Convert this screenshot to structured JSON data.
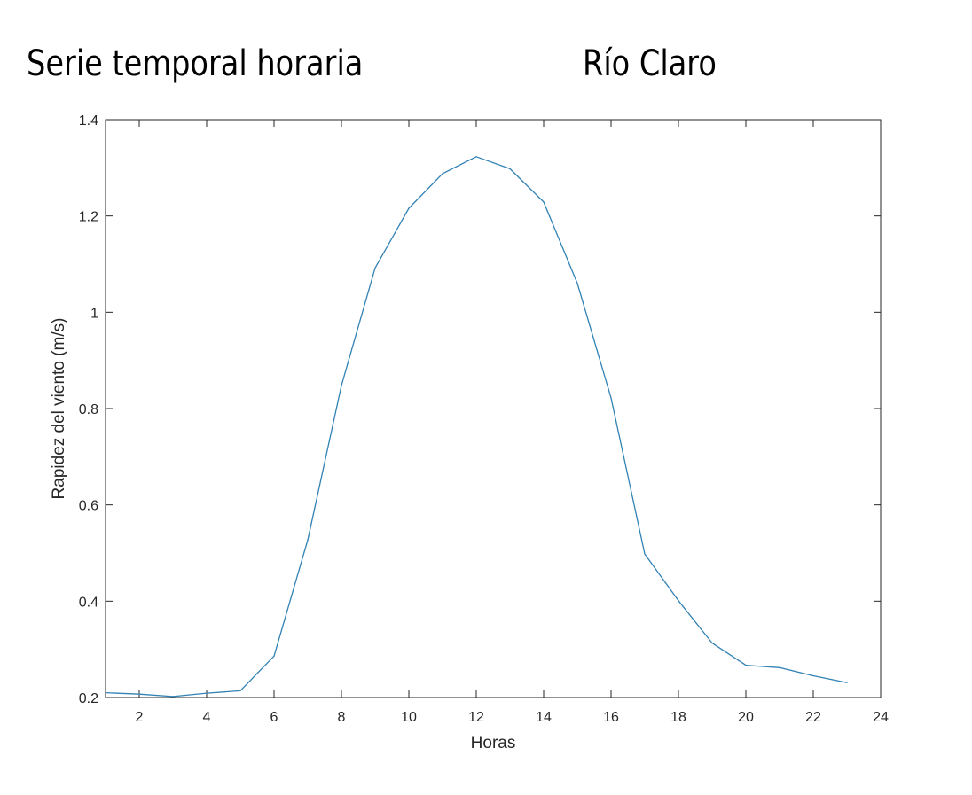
{
  "header": {
    "title": "Serie temporal horaria",
    "location": "Río Claro"
  },
  "chart_data": {
    "type": "line",
    "xlabel": "Horas",
    "ylabel": "Rapidez del viento (m/s)",
    "xlim": [
      1,
      24
    ],
    "ylim": [
      0.2,
      1.4
    ],
    "xticks": [
      2,
      4,
      6,
      8,
      10,
      12,
      14,
      16,
      18,
      20,
      22,
      24
    ],
    "yticks": [
      0.2,
      0.4,
      0.6,
      0.8,
      1,
      1.2,
      1.4
    ],
    "xtick_labels": [
      "2",
      "4",
      "6",
      "8",
      "10",
      "12",
      "14",
      "16",
      "18",
      "20",
      "22",
      "24"
    ],
    "ytick_labels": [
      "0.2",
      "0.4",
      "0.6",
      "0.8",
      "1",
      "1.2",
      "1.4"
    ],
    "grid": false,
    "line_color": "#3182b5",
    "series": [
      {
        "x": [
          1,
          2,
          3,
          4,
          5,
          6,
          7,
          8,
          9,
          10,
          11,
          12,
          13,
          14,
          15,
          16,
          17,
          18,
          19,
          20,
          21,
          22,
          23
        ],
        "y": [
          0.21,
          0.207,
          0.202,
          0.209,
          0.214,
          0.286,
          0.527,
          0.848,
          1.092,
          1.216,
          1.288,
          1.323,
          1.298,
          1.229,
          1.06,
          0.822,
          0.498,
          0.401,
          0.313,
          0.267,
          0.262,
          0.245,
          0.231
        ]
      }
    ]
  }
}
